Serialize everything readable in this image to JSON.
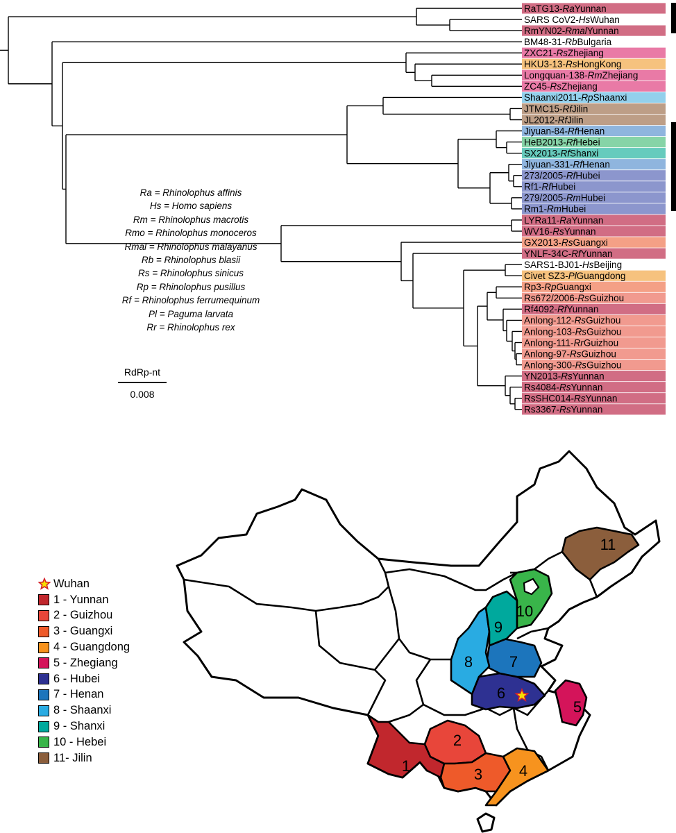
{
  "colors": {
    "Yunnan": "#d16d84",
    "Zhejiang": "#e97aa6",
    "HongKong": "#f6c27e",
    "Shaanxi": "#93d0ec",
    "Jilin": "#bd9e87",
    "Henan": "#8fb5de",
    "Hebei": "#86d4a7",
    "Shanxi": "#66cbbd",
    "Hubei": "#8c96cd",
    "Guangxi": "#f4a086",
    "Guizhou": "#f19a8f",
    "Guangdong": "#f6c27e",
    "none": "#ffffff",
    "black_bar": "#000000"
  },
  "tree": {
    "tips": [
      {
        "pre": "RaTG13-",
        "host": "Ra",
        "post": "Yunnan",
        "color": "Yunnan"
      },
      {
        "pre": "SARS CoV2-",
        "host": "Hs",
        "post": "Wuhan",
        "color": "none"
      },
      {
        "pre": "RmYN02-",
        "host": "Rmal",
        "post": "Yunnan",
        "color": "Yunnan"
      },
      {
        "pre": "BM48-31-",
        "host": "Rb",
        "post": "Bulgaria",
        "color": "none"
      },
      {
        "pre": "ZXC21-",
        "host": "Rs",
        "post": "Zhejiang",
        "color": "Zhejiang"
      },
      {
        "pre": "HKU3-13-",
        "host": "Rs",
        "post": "HongKong",
        "color": "HongKong"
      },
      {
        "pre": "Longquan-138-",
        "host": "Rm",
        "post": "Zhejiang",
        "color": "Zhejiang"
      },
      {
        "pre": "ZC45-",
        "host": "Rs",
        "post": "Zhejiang",
        "color": "Zhejiang"
      },
      {
        "pre": "Shaanxi2011-",
        "host": "Rp",
        "post": "Shaanxi",
        "color": "Shaanxi"
      },
      {
        "pre": "JTMC15-",
        "host": "Rf",
        "post": "Jilin",
        "color": "Jilin"
      },
      {
        "pre": "JL2012-",
        "host": "Rf",
        "post": "Jilin",
        "color": "Jilin"
      },
      {
        "pre": "Jiyuan-84-",
        "host": "Rf",
        "post": "Henan",
        "color": "Henan"
      },
      {
        "pre": "HeB2013-",
        "host": "Rf",
        "post": "Hebei",
        "color": "Hebei"
      },
      {
        "pre": "SX2013-",
        "host": "Rf",
        "post": "Shanxi",
        "color": "Shanxi"
      },
      {
        "pre": "Jiyuan-331-",
        "host": "Rf",
        "post": "Henan",
        "color": "Henan"
      },
      {
        "pre": "273/2005-",
        "host": "Rf",
        "post": "Hubei",
        "color": "Hubei"
      },
      {
        "pre": "Rf1-",
        "host": "Rf",
        "post": "Hubei",
        "color": "Hubei"
      },
      {
        "pre": "279/2005-",
        "host": "Rm",
        "post": "Hubei",
        "color": "Hubei"
      },
      {
        "pre": "Rm1-",
        "host": "Rm",
        "post": "Hubei",
        "color": "Hubei"
      },
      {
        "pre": "LYRa11-",
        "host": "Ra",
        "post": "Yunnan",
        "color": "Yunnan"
      },
      {
        "pre": "WV16-",
        "host": "Rs",
        "post": "Yunnan",
        "color": "Yunnan"
      },
      {
        "pre": "GX2013-",
        "host": "Rs",
        "post": "Guangxi",
        "color": "Guangxi"
      },
      {
        "pre": "YNLF-34C-",
        "host": "Rf",
        "post": "Yunnan",
        "color": "Yunnan"
      },
      {
        "pre": "SARS1-BJ01-",
        "host": "Hs",
        "post": "Beijing",
        "color": "none"
      },
      {
        "pre": "Civet SZ3-",
        "host": "Pl",
        "post": "Guangdong",
        "color": "Guangdong"
      },
      {
        "pre": "Rp3-",
        "host": "Rp",
        "post": "Guangxi",
        "color": "Guangxi"
      },
      {
        "pre": "Rs672/2006-",
        "host": "Rs",
        "post": "Guizhou",
        "color": "Guizhou"
      },
      {
        "pre": "Rf4092-",
        "host": "Rf",
        "post": "Yunnan",
        "color": "Yunnan"
      },
      {
        "pre": "Anlong-112-",
        "host": "Rs",
        "post": "Guizhou",
        "color": "Guizhou"
      },
      {
        "pre": "Anlong-103-",
        "host": "Rs",
        "post": "Guizhou",
        "color": "Guizhou"
      },
      {
        "pre": "Anlong-111-",
        "host": "Rr",
        "post": "Guizhou",
        "color": "Guizhou"
      },
      {
        "pre": "Anlong-97-",
        "host": "Rs",
        "post": "Guizhou",
        "color": "Guizhou"
      },
      {
        "pre": "Anlong-300-",
        "host": "Rs",
        "post": "Guizhou",
        "color": "Guizhou"
      },
      {
        "pre": "YN2013-",
        "host": "Rs",
        "post": "Yunnan",
        "color": "Yunnan"
      },
      {
        "pre": "Rs4084-",
        "host": "Rs",
        "post": "Yunnan",
        "color": "Yunnan"
      },
      {
        "pre": "RsSHC014-",
        "host": "Rs",
        "post": "Yunnan",
        "color": "Yunnan"
      },
      {
        "pre": "Rs3367-",
        "host": "Rs",
        "post": "Yunnan",
        "color": "Yunnan"
      }
    ],
    "abbreviations": [
      "Ra = Rhinolophus affinis",
      "Hs = Homo sapiens",
      "Rm = Rhinolophus macrotis",
      "Rmo = Rhinolophus monoceros",
      "Rmal = Rhinolophus malayanus",
      "Rb = Rhinolophus blasii",
      "Rs = Rhinolophus sinicus",
      "Rp = Rhinolophus pusillus",
      "Rf = Rhinolophus ferrumequinum",
      "Pl = Paguma larvata",
      "Rr = Rhinolophus rex"
    ],
    "scale_label": "RdRp-nt",
    "scale_value": "0.008"
  },
  "map": {
    "regions": [
      {
        "num": "1",
        "name": "Yunnan",
        "color": "#c1272d"
      },
      {
        "num": "2",
        "name": "Guizhou",
        "color": "#e8463a"
      },
      {
        "num": "3",
        "name": "Guangxi",
        "color": "#ee5a2a"
      },
      {
        "num": "4",
        "name": "Guangdong",
        "color": "#f7931e"
      },
      {
        "num": "5",
        "name": "Zhegiang",
        "color": "#d4145a"
      },
      {
        "num": "6",
        "name": "Hubei",
        "color": "#2e3192"
      },
      {
        "num": "7",
        "name": "Henan",
        "color": "#1c75bc"
      },
      {
        "num": "8",
        "name": "Shaanxi",
        "color": "#29abe2"
      },
      {
        "num": "9",
        "name": "Shanxi",
        "color": "#00a99d"
      },
      {
        "num": "10",
        "name": "Hebei",
        "color": "#39b54a"
      },
      {
        "num": "11",
        "name": "Jilin",
        "color": "#8b5e3c"
      }
    ],
    "legend": [
      {
        "label": "Wuhan",
        "kind": "star"
      },
      {
        "label": "1 - Yunnan",
        "region": 0
      },
      {
        "label": "2 - Guizhou",
        "region": 1
      },
      {
        "label": "3 - Guangxi",
        "region": 2
      },
      {
        "label": "4 - Guangdong",
        "region": 3
      },
      {
        "label": "5 - Zhegiang",
        "region": 4
      },
      {
        "label": "6 - Hubei",
        "region": 5
      },
      {
        "label": "7 - Henan",
        "region": 6
      },
      {
        "label": "8 - Shaanxi",
        "region": 7
      },
      {
        "label": "9 - Shanxi",
        "region": 8
      },
      {
        "label": "10 - Hebei",
        "region": 9
      },
      {
        "label": "11- Jilin",
        "region": 10
      }
    ],
    "star_fill": "#f7e000",
    "star_stroke": "#d4202a"
  }
}
